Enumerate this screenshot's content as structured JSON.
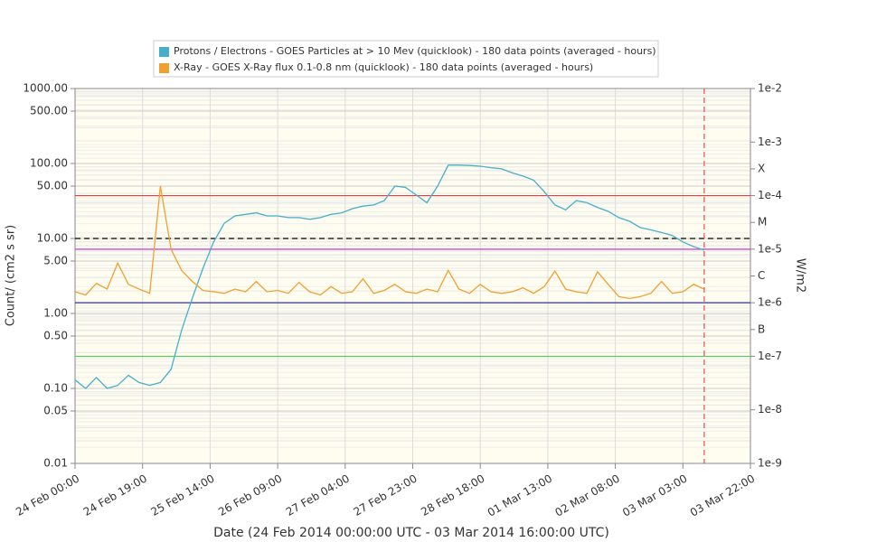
{
  "chart_data": {
    "type": "line",
    "xlabel": "Date (24 Feb 2014 00:00:00 UTC - 03 Mar 2014 16:00:00 UTC)",
    "ylabel": "Count/ (cm2 s sr)",
    "y2label": "W/m2",
    "log_scale": true,
    "grid": true,
    "x": [
      "24 Feb 00:00",
      "24 Feb 03:00",
      "24 Feb 06:00",
      "24 Feb 09:00",
      "24 Feb 12:00",
      "24 Feb 15:00",
      "24 Feb 18:00",
      "24 Feb 21:00",
      "25 Feb 00:00",
      "25 Feb 03:00",
      "25 Feb 06:00",
      "25 Feb 09:00",
      "25 Feb 12:00",
      "25 Feb 15:00",
      "25 Feb 18:00",
      "25 Feb 21:00",
      "26 Feb 00:00",
      "26 Feb 03:00",
      "26 Feb 06:00",
      "26 Feb 09:00",
      "26 Feb 12:00",
      "26 Feb 15:00",
      "26 Feb 18:00",
      "26 Feb 21:00",
      "27 Feb 00:00",
      "27 Feb 03:00",
      "27 Feb 06:00",
      "27 Feb 09:00",
      "27 Feb 12:00",
      "27 Feb 15:00",
      "27 Feb 18:00",
      "27 Feb 21:00",
      "28 Feb 00:00",
      "28 Feb 03:00",
      "28 Feb 06:00",
      "28 Feb 09:00",
      "28 Feb 12:00",
      "28 Feb 15:00",
      "28 Feb 18:00",
      "28 Feb 21:00",
      "01 Mar 00:00",
      "01 Mar 03:00",
      "01 Mar 06:00",
      "01 Mar 09:00",
      "01 Mar 12:00",
      "01 Mar 15:00",
      "01 Mar 18:00",
      "01 Mar 21:00",
      "02 Mar 00:00",
      "02 Mar 03:00",
      "02 Mar 06:00",
      "02 Mar 09:00",
      "02 Mar 12:00",
      "02 Mar 15:00",
      "02 Mar 18:00",
      "02 Mar 21:00",
      "03 Mar 00:00",
      "03 Mar 03:00",
      "03 Mar 06:00",
      "03 Mar 09:00"
    ],
    "series": [
      {
        "name": "Protons / Electrons - GOES Particles at > 10 Mev (quicklook) - 180 data points (averaged - hours)",
        "color": "#45b0c8",
        "values": [
          0.13,
          0.1,
          0.14,
          0.1,
          0.11,
          0.15,
          0.12,
          0.11,
          0.12,
          0.18,
          0.6,
          1.6,
          4,
          9,
          16,
          20,
          21,
          22,
          20,
          20,
          19,
          19,
          18,
          19,
          21,
          22,
          25,
          27,
          28,
          32,
          50,
          48,
          38,
          30,
          50,
          95,
          95,
          94,
          92,
          88,
          85,
          75,
          68,
          60,
          42,
          28,
          24,
          32,
          30,
          26,
          23,
          19,
          17,
          14,
          13,
          12,
          11,
          9,
          7.8,
          7
        ]
      },
      {
        "name": "X-Ray - GOES X-Ray flux 0.1-0.8 nm (quicklook) - 180 data points (averaged - hours)",
        "color": "#f0a030",
        "axis": "y2",
        "values": [
          1.6e-06,
          1.4e-06,
          2.3e-06,
          1.8e-06,
          5.5e-06,
          2.2e-06,
          1.8e-06,
          1.5e-06,
          0.00015,
          1e-05,
          4e-06,
          2.5e-06,
          1.7e-06,
          1.6e-06,
          1.5e-06,
          1.8e-06,
          1.6e-06,
          2.5e-06,
          1.6e-06,
          1.7e-06,
          1.5e-06,
          2.4e-06,
          1.6e-06,
          1.4e-06,
          2e-06,
          1.5e-06,
          1.6e-06,
          2.8e-06,
          1.5e-06,
          1.7e-06,
          2.2e-06,
          1.6e-06,
          1.5e-06,
          1.8e-06,
          1.6e-06,
          4e-06,
          1.8e-06,
          1.5e-06,
          2.2e-06,
          1.6e-06,
          1.5e-06,
          1.6e-06,
          1.9e-06,
          1.5e-06,
          2e-06,
          3.9e-06,
          1.8e-06,
          1.6e-06,
          1.5e-06,
          3.8e-06,
          2.2e-06,
          1.3e-06,
          1.2e-06,
          1.3e-06,
          1.5e-06,
          2.5e-06,
          1.5e-06,
          1.6e-06,
          2.2e-06,
          1.8e-06
        ]
      }
    ],
    "xlim": [
      "24 Feb 00:00",
      "03 Mar 22:00"
    ],
    "xticks": [
      "24 Feb 00:00",
      "24 Feb 19:00",
      "25 Feb 14:00",
      "26 Feb 09:00",
      "27 Feb 04:00",
      "27 Feb 23:00",
      "28 Feb 18:00",
      "01 Mar 13:00",
      "02 Mar 08:00",
      "03 Mar 03:00",
      "03 Mar 22:00"
    ],
    "ylim": [
      0.01,
      1000
    ],
    "yticks": [
      {
        "value": 1000,
        "label": "1000.00"
      },
      {
        "value": 500,
        "label": "500.00"
      },
      {
        "value": 100,
        "label": "100.00"
      },
      {
        "value": 50,
        "label": "50.00"
      },
      {
        "value": 10,
        "label": "10.00"
      },
      {
        "value": 5,
        "label": "5.00"
      },
      {
        "value": 1,
        "label": "1.00"
      },
      {
        "value": 0.5,
        "label": "0.50"
      },
      {
        "value": 0.1,
        "label": "0.10"
      },
      {
        "value": 0.05,
        "label": "0.05"
      },
      {
        "value": 0.01,
        "label": "0.01"
      }
    ],
    "y2lim": [
      1e-09,
      0.01
    ],
    "y2ticks": [
      {
        "value": 0.01,
        "label": "1e-2"
      },
      {
        "value": 0.001,
        "label": "1e-3"
      },
      {
        "value": 0.000316,
        "label": "X"
      },
      {
        "value": 0.0001,
        "label": "1e-4"
      },
      {
        "value": 3.16e-05,
        "label": "M"
      },
      {
        "value": 1e-05,
        "label": "1e-5"
      },
      {
        "value": 3.16e-06,
        "label": "C"
      },
      {
        "value": 1e-06,
        "label": "1e-6"
      },
      {
        "value": 3.16e-07,
        "label": "B"
      },
      {
        "value": 1e-07,
        "label": "1e-7"
      },
      {
        "value": 1e-08,
        "label": "1e-8"
      },
      {
        "value": 1e-09,
        "label": "1e-9"
      }
    ],
    "reference_lines": [
      {
        "axis": "y2",
        "value": 0.0001,
        "color": "#e04040"
      },
      {
        "axis": "y2",
        "value": 1e-05,
        "color": "#d040d0"
      },
      {
        "axis": "y2",
        "value": 1e-06,
        "color": "#303090"
      },
      {
        "axis": "y2",
        "value": 1e-07,
        "color": "#50d050"
      },
      {
        "axis": "y",
        "value": 10,
        "color": "#000000",
        "dashed": true
      }
    ],
    "vline": {
      "x": "03 Mar 09:00",
      "color": "#e05050"
    }
  }
}
